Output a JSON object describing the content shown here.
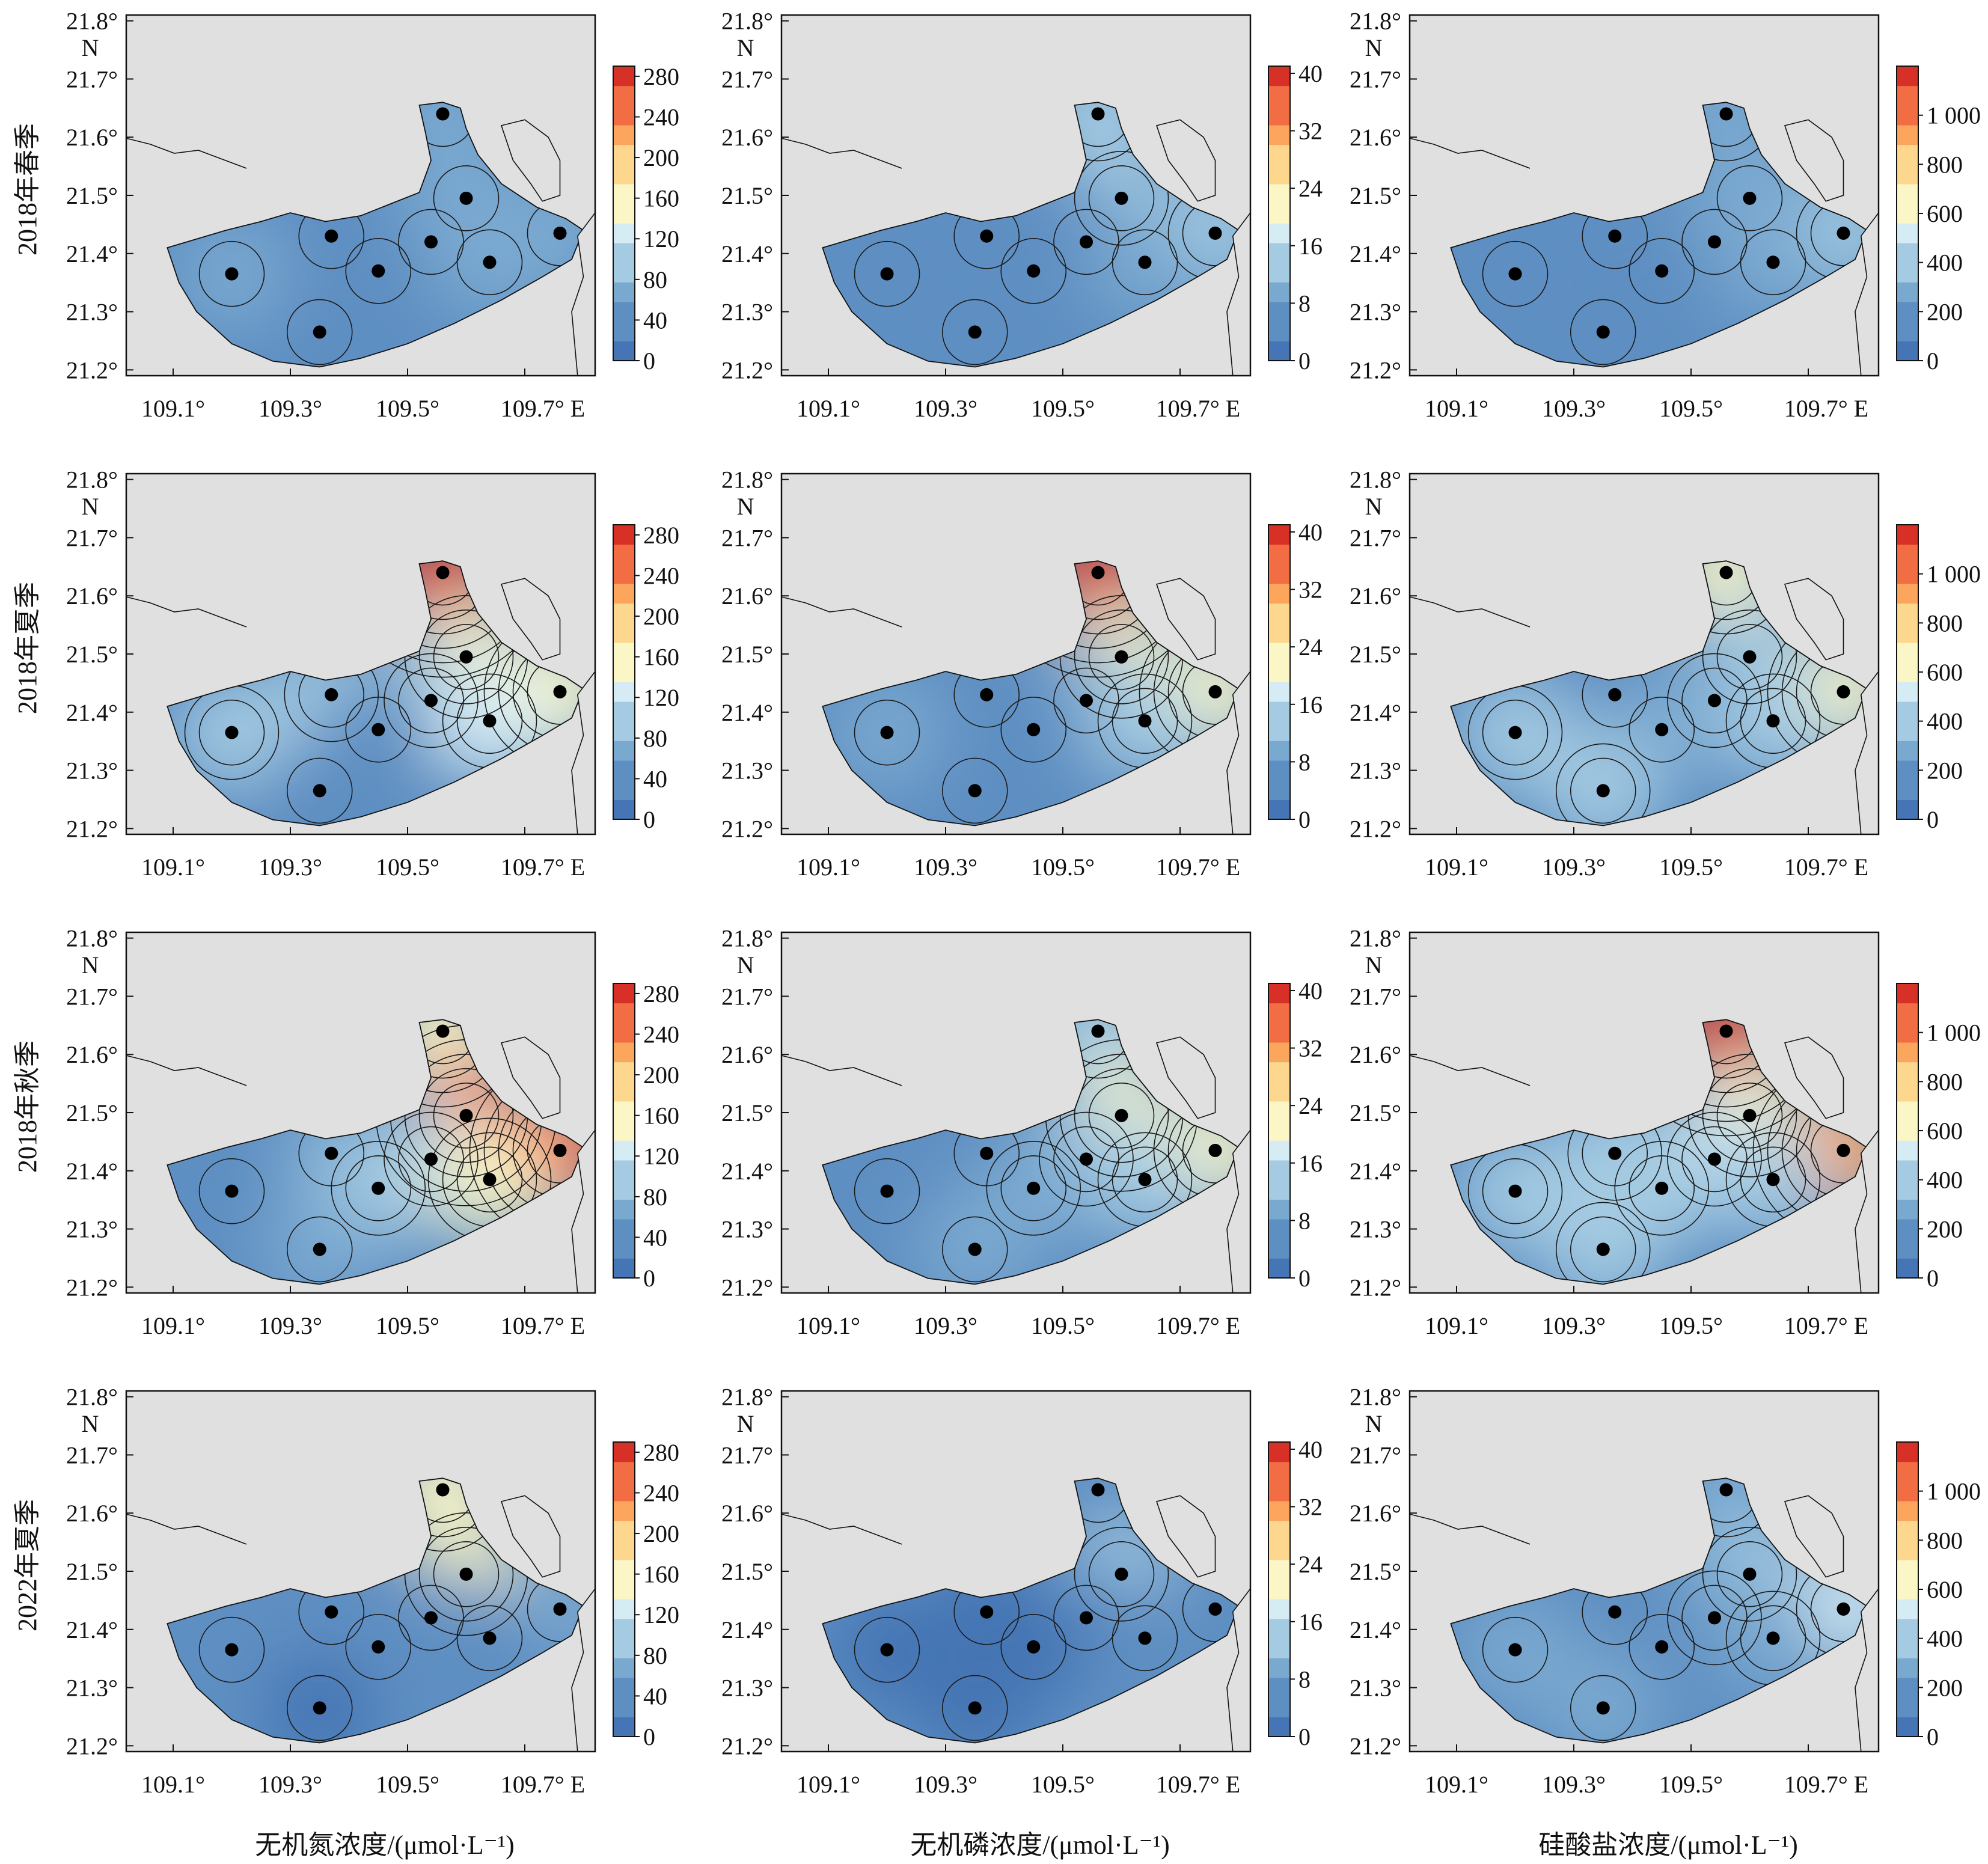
{
  "figure": {
    "rows": [
      "2018年春季",
      "2018年夏季",
      "2018年秋季",
      "2022年夏季"
    ],
    "columns": [
      {
        "xlabel": "无机氮浓度/(μmol·L⁻¹)",
        "colorbar_ticks": [
          "0",
          "40",
          "80",
          "120",
          "160",
          "200",
          "240",
          "280"
        ],
        "colorbar_max": 290
      },
      {
        "xlabel": "无机磷浓度/(μmol·L⁻¹)",
        "colorbar_ticks": [
          "0",
          "8",
          "16",
          "24",
          "32",
          "40"
        ],
        "colorbar_max": 41
      },
      {
        "xlabel": "硅酸盐浓度/(μmol·L⁻¹)",
        "colorbar_ticks": [
          "0",
          "200",
          "400",
          "600",
          "800",
          "1 000"
        ],
        "colorbar_max": 1200
      }
    ],
    "lat_ticks": [
      "21.2°",
      "21.3°",
      "21.4°",
      "21.5°",
      "21.6°",
      "21.7°",
      "21.8°"
    ],
    "lon_ticks": [
      "109.1°",
      "109.3°",
      "109.5°",
      "109.7° E"
    ],
    "north_label": "N",
    "lon_range": [
      109.02,
      109.82
    ],
    "lat_range": [
      21.19,
      21.81
    ],
    "colors": {
      "land": "#e0e0e0",
      "station": "#000000",
      "scale": [
        "#4575b4",
        "#5e8fc2",
        "#7aa9d0",
        "#a4cbe2",
        "#d6ecf4",
        "#fbf6c6",
        "#fcd78d",
        "#fca55d",
        "#f26d43",
        "#d73027"
      ]
    },
    "stations": [
      {
        "lon": 109.56,
        "lat": 21.64
      },
      {
        "lon": 109.6,
        "lat": 21.495
      },
      {
        "lon": 109.37,
        "lat": 21.43
      },
      {
        "lon": 109.54,
        "lat": 21.42
      },
      {
        "lon": 109.76,
        "lat": 21.435
      },
      {
        "lon": 109.2,
        "lat": 21.365
      },
      {
        "lon": 109.45,
        "lat": 21.37
      },
      {
        "lon": 109.64,
        "lat": 21.385
      },
      {
        "lon": 109.35,
        "lat": 21.265
      }
    ],
    "panels": [
      [
        {
          "station_levels": [
            0.2,
            0.2,
            0.1,
            0.2,
            0.2,
            0.2,
            0.1,
            0.2,
            0.1
          ]
        },
        {
          "station_levels": [
            0.35,
            0.3,
            0.1,
            0.1,
            0.3,
            0.1,
            0.1,
            0.2,
            0.1
          ]
        },
        {
          "station_levels": [
            0.25,
            0.2,
            0.1,
            0.2,
            0.3,
            0.1,
            0.1,
            0.2,
            0.1
          ]
        }
      ],
      [
        {
          "station_levels": [
            0.95,
            0.55,
            0.3,
            0.3,
            0.6,
            0.3,
            0.15,
            0.4,
            0.15
          ]
        },
        {
          "station_levels": [
            0.95,
            0.5,
            0.15,
            0.2,
            0.6,
            0.2,
            0.1,
            0.3,
            0.15
          ]
        },
        {
          "station_levels": [
            0.55,
            0.35,
            0.1,
            0.25,
            0.6,
            0.3,
            0.2,
            0.3,
            0.3
          ]
        }
      ],
      [
        {
          "station_levels": [
            0.6,
            0.9,
            0.2,
            0.3,
            0.9,
            0.1,
            0.3,
            0.5,
            0.2
          ]
        },
        {
          "station_levels": [
            0.3,
            0.6,
            0.15,
            0.3,
            0.5,
            0.1,
            0.25,
            0.3,
            0.2
          ]
        },
        {
          "station_levels": [
            0.95,
            0.55,
            0.3,
            0.4,
            0.75,
            0.3,
            0.3,
            0.35,
            0.3
          ]
        }
      ],
      [
        {
          "station_levels": [
            0.5,
            0.5,
            0.1,
            0.15,
            0.2,
            0.1,
            0.1,
            0.15,
            0.05
          ]
        },
        {
          "station_levels": [
            0.1,
            0.3,
            0.05,
            0.1,
            0.15,
            0.05,
            0.05,
            0.1,
            0.05
          ]
        },
        {
          "station_levels": [
            0.25,
            0.3,
            0.1,
            0.25,
            0.4,
            0.2,
            0.1,
            0.25,
            0.2
          ]
        }
      ]
    ]
  }
}
